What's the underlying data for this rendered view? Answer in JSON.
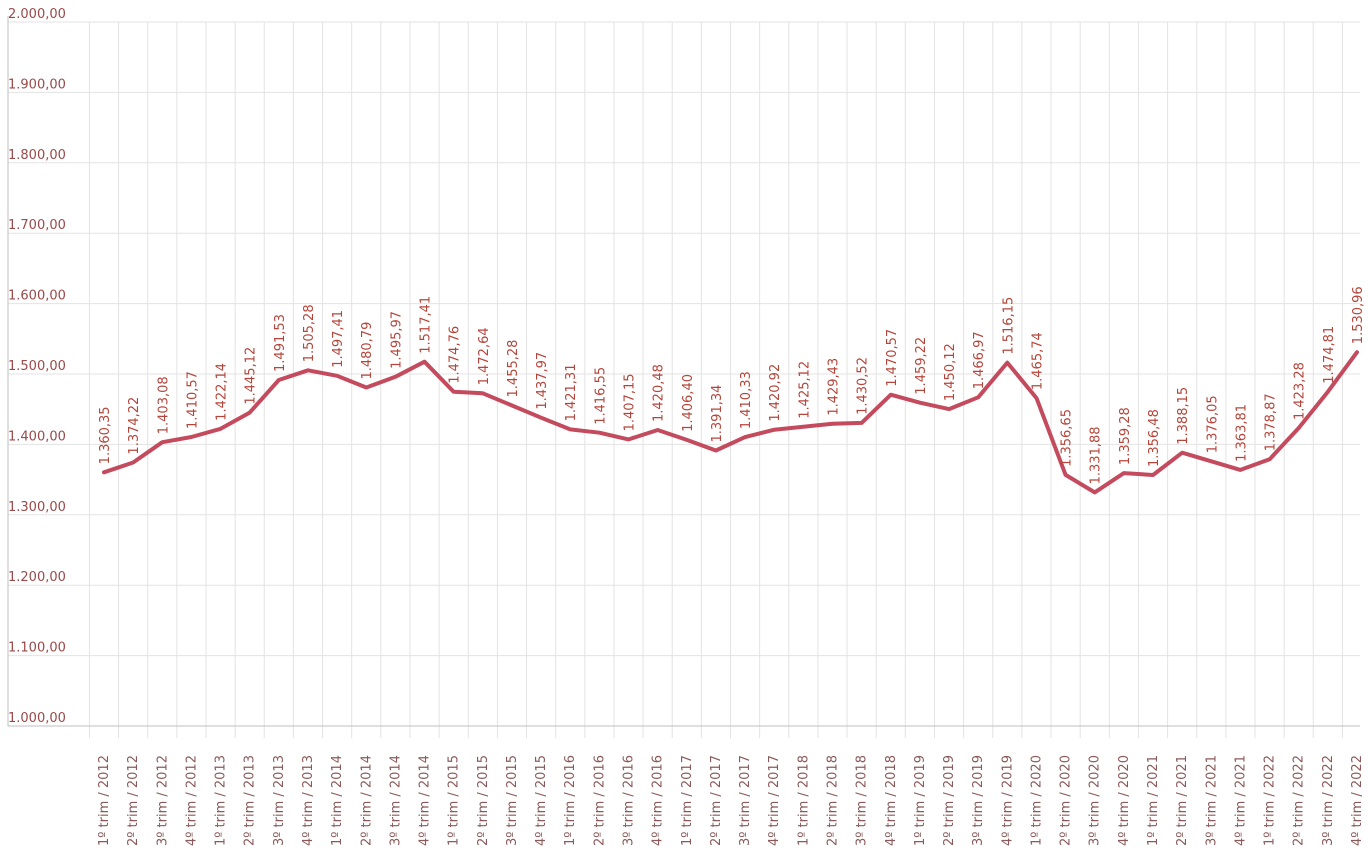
{
  "colors": {
    "series": "#c44a5e",
    "data_label": "#b5453a",
    "grid": "#e3e3e3"
  },
  "chart_data": {
    "type": "line",
    "title": "",
    "xlabel": "",
    "ylabel": "",
    "ylim": [
      1000,
      2000
    ],
    "y_ticks": [
      "1.000,00",
      "1.100,00",
      "1.200,00",
      "1.300,00",
      "1.400,00",
      "1.500,00",
      "1.600,00",
      "1.700,00",
      "1.800,00",
      "1.900,00",
      "2.000,00"
    ],
    "categories": [
      "1º trim / 2012",
      "2º trim / 2012",
      "3º trim / 2012",
      "4º trim / 2012",
      "1º trim / 2013",
      "2º trim / 2013",
      "3º trim / 2013",
      "4º trim / 2013",
      "1º trim / 2014",
      "2º trim / 2014",
      "3º trim / 2014",
      "4º trim / 2014",
      "1º trim / 2015",
      "2º trim / 2015",
      "3º trim / 2015",
      "4º trim / 2015",
      "1º trim / 2016",
      "2º trim / 2016",
      "3º trim / 2016",
      "4º trim / 2016",
      "1º trim / 2017",
      "2º trim / 2017",
      "3º trim / 2017",
      "4º trim / 2017",
      "1º trim / 2018",
      "2º trim / 2018",
      "3º trim / 2018",
      "4º trim / 2018",
      "1º trim / 2019",
      "2º trim / 2019",
      "3º trim / 2019",
      "4º trim / 2019",
      "1º trim / 2020",
      "2º trim / 2020",
      "3º trim / 2020",
      "4º trim / 2020",
      "1º trim / 2021",
      "2º trim / 2021",
      "3º trim / 2021",
      "4º trim / 2021",
      "1º trim / 2022",
      "2º trim / 2022",
      "3º trim / 2022",
      "4º trim / 2022"
    ],
    "series": [
      {
        "values": [
          1360.35,
          1374.22,
          1403.08,
          1410.57,
          1422.14,
          1445.12,
          1491.53,
          1505.28,
          1497.41,
          1480.79,
          1495.97,
          1517.41,
          1474.76,
          1472.64,
          1455.28,
          1437.97,
          1421.31,
          1416.55,
          1407.15,
          1420.48,
          1406.4,
          1391.34,
          1410.33,
          1420.92,
          1425.12,
          1429.43,
          1430.52,
          1470.57,
          1459.22,
          1450.12,
          1466.97,
          1516.15,
          1465.74,
          1356.65,
          1331.88,
          1359.28,
          1356.48,
          1388.15,
          1376.05,
          1363.81,
          1378.87,
          1423.28,
          1474.81,
          1530.96
        ],
        "labels": [
          "1.360,35",
          "1.374,22",
          "1.403,08",
          "1.410,57",
          "1.422,14",
          "1.445,12",
          "1.491,53",
          "1.505,28",
          "1.497,41",
          "1.480,79",
          "1.495,97",
          "1.517,41",
          "1.474,76",
          "1.472,64",
          "1.455,28",
          "1.437,97",
          "1.421,31",
          "1.416,55",
          "1.407,15",
          "1.420,48",
          "1.406,40",
          "1.391,34",
          "1.410,33",
          "1.420,92",
          "1.425,12",
          "1.429,43",
          "1.430,52",
          "1.470,57",
          "1.459,22",
          "1.450,12",
          "1.466,97",
          "1.516,15",
          "1.465,74",
          "1.356,65",
          "1.331,88",
          "1.359,28",
          "1.356,48",
          "1.388,15",
          "1.376,05",
          "1.363,81",
          "1.378,87",
          "1.423,28",
          "1.474,81",
          "1.530,96"
        ]
      }
    ],
    "grid": true,
    "legend": "none"
  }
}
